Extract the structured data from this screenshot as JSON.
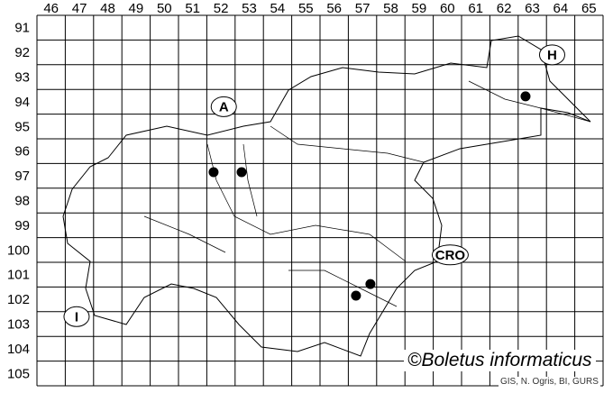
{
  "map": {
    "column_labels": [
      "46",
      "47",
      "48",
      "49",
      "50",
      "51",
      "52",
      "53",
      "54",
      "55",
      "56",
      "57",
      "58",
      "59",
      "60",
      "61",
      "62",
      "63",
      "64",
      "65"
    ],
    "row_labels": [
      "91",
      "92",
      "93",
      "94",
      "95",
      "96",
      "97",
      "98",
      "99",
      "100",
      "101",
      "102",
      "103",
      "104",
      "105"
    ],
    "country_labels": [
      {
        "id": "austria",
        "text": "A",
        "col": 52.6,
        "row": 94.7
      },
      {
        "id": "hungary",
        "text": "H",
        "col": 64.2,
        "row": 92.6
      },
      {
        "id": "croatia",
        "text": "CRO",
        "col": 60.6,
        "row": 100.7
      },
      {
        "id": "italy",
        "text": "I",
        "col": 47.4,
        "row": 103.2
      }
    ],
    "records": [
      {
        "col": 52.24,
        "row": 97.35
      },
      {
        "col": 53.23,
        "row": 97.35
      },
      {
        "col": 63.26,
        "row": 94.28
      },
      {
        "col": 57.27,
        "row": 102.35
      },
      {
        "col": 57.78,
        "row": 101.88
      }
    ],
    "record_color": "#000000"
  },
  "copyright": "©Boletus informaticus",
  "credit": "GIS, N. Ogris, BI, GURS"
}
